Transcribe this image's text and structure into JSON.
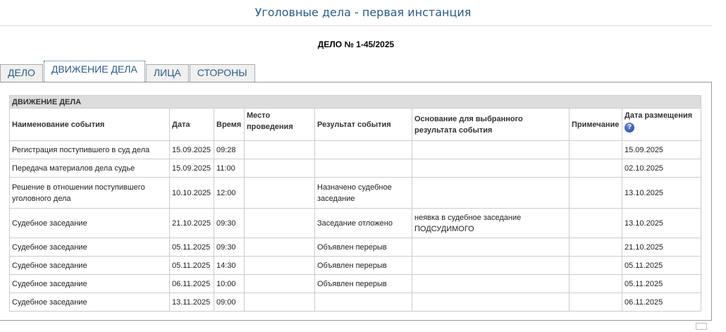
{
  "header": {
    "title": "Уголовные дела - первая инстанция",
    "case_number": "ДЕЛО № 1-45/2025"
  },
  "tabs": [
    {
      "label": "ДЕЛО",
      "active": false
    },
    {
      "label": "ДВИЖЕНИЕ ДЕЛА",
      "active": true
    },
    {
      "label": "ЛИЦА",
      "active": false
    },
    {
      "label": "СТОРОНЫ",
      "active": false
    }
  ],
  "table": {
    "caption": "ДВИЖЕНИЕ ДЕЛА",
    "columns": [
      "Наименование события",
      "Дата",
      "Время",
      "Место проведения",
      "Результат события",
      "Основание для выбранного результата события",
      "Примечание",
      "Дата размещения"
    ],
    "help_icon": "?",
    "rows": [
      [
        "Регистрация поступившего в суд дела",
        "15.09.2025",
        "09:28",
        "",
        "",
        "",
        "",
        "15.09.2025"
      ],
      [
        "Передача материалов дела судье",
        "15.09.2025",
        "11:00",
        "",
        "",
        "",
        "",
        "02.10.2025"
      ],
      [
        "Решение в отношении поступившего уголовного дела",
        "10.10.2025",
        "12:00",
        "",
        "Назначено судебное заседание",
        "",
        "",
        "13.10.2025"
      ],
      [
        "Судебное заседание",
        "21.10.2025",
        "09:30",
        "",
        "Заседание отложено",
        "неявка в судебное заседание ПОДСУДИМОГО",
        "",
        "13.10.2025"
      ],
      [
        "Судебное заседание",
        "05.11.2025",
        "09:30",
        "",
        "Объявлен перерыв",
        "",
        "",
        "21.10.2025"
      ],
      [
        "Судебное заседание",
        "05.11.2025",
        "14:30",
        "",
        "Объявлен перерыв",
        "",
        "",
        "05.11.2025"
      ],
      [
        "Судебное заседание",
        "06.11.2025",
        "10:00",
        "",
        "Объявлен перерыв",
        "",
        "",
        "05.11.2025"
      ],
      [
        "Судебное заседание",
        "13.11.2025",
        "09:00",
        "",
        "",
        "",
        "",
        "06.11.2025"
      ]
    ]
  }
}
